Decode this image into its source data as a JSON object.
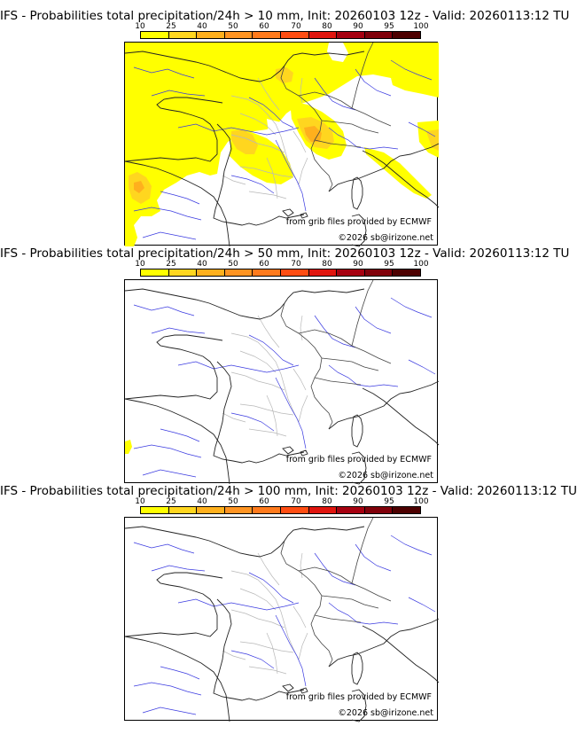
{
  "colorbar": {
    "ticks": [
      "10",
      "25",
      "40",
      "50",
      "60",
      "70",
      "80",
      "90",
      "95",
      "100"
    ],
    "colors": [
      "#ffff00",
      "#ffd61f",
      "#ffb01d",
      "#ff9422",
      "#ff7a1c",
      "#ff4d12",
      "#e0150e",
      "#a60010",
      "#80000a",
      "#4d0000"
    ]
  },
  "panels": [
    {
      "title": "IFS - Probabilities total precipitation/24h > 10 mm, Init: 20260103 12z - Valid: 20260113:12 TU",
      "source": "from grib files provided by ECMWF",
      "copyright": "©2026 sb@irizone.net",
      "precip_field": "extensive"
    },
    {
      "title": "IFS - Probabilities total precipitation/24h > 50 mm, Init: 20260103 12z - Valid: 20260113:12 TU",
      "source": "from grib files provided by ECMWF",
      "copyright": "©2026 sb@irizone.net",
      "precip_field": "minimal"
    },
    {
      "title": "IFS - Probabilities total precipitation/24h > 100 mm, Init: 20260103 12z - Valid: 20260113:12 TU",
      "source": "from grib files provided by ECMWF",
      "copyright": "©2026 sb@irizone.net",
      "precip_field": "none"
    }
  ]
}
